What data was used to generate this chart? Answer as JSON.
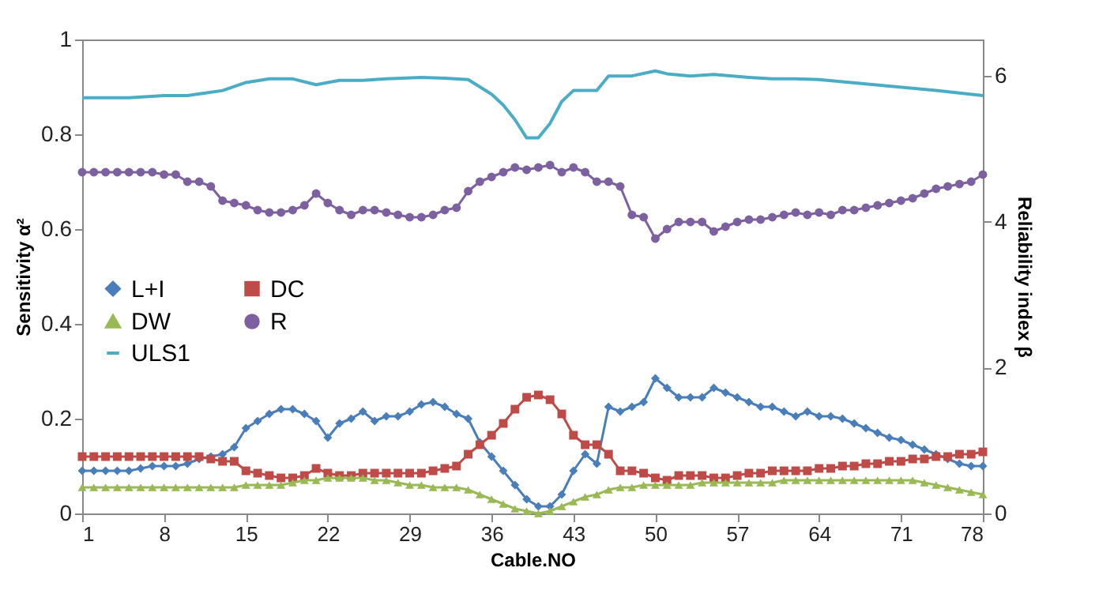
{
  "chart_data": {
    "type": "line",
    "xlabel": "Cable.NO",
    "ylabel": "Sensitivity α²",
    "y2label": "Reliability index β",
    "x": [
      1,
      2,
      3,
      4,
      5,
      6,
      7,
      8,
      9,
      10,
      11,
      12,
      13,
      14,
      15,
      16,
      17,
      18,
      19,
      20,
      21,
      22,
      23,
      24,
      25,
      26,
      27,
      28,
      29,
      30,
      31,
      32,
      33,
      34,
      35,
      36,
      37,
      38,
      39,
      40,
      41,
      42,
      43,
      44,
      45,
      46,
      47,
      48,
      49,
      50,
      51,
      52,
      53,
      54,
      55,
      56,
      57,
      58,
      59,
      60,
      61,
      62,
      63,
      64,
      65,
      66,
      67,
      68,
      69,
      70,
      71,
      72,
      73,
      74,
      75,
      76,
      77,
      78
    ],
    "xlim": [
      1,
      78
    ],
    "xticks": [
      1,
      8,
      15,
      22,
      29,
      36,
      43,
      50,
      57,
      64,
      71,
      78
    ],
    "ylim": [
      0,
      1
    ],
    "yticks": [
      {
        "value": 0,
        "label": "0"
      },
      0.2,
      0.4,
      0.6,
      0.8,
      {
        "value": 1,
        "label": "1"
      }
    ],
    "y2lim": [
      0,
      6.5
    ],
    "y2ticks": [
      0,
      2,
      4,
      6
    ],
    "legend": "left",
    "grid": false,
    "series": [
      {
        "name": "L+I",
        "color": "#4a7ebb",
        "marker": "diamond",
        "values": [
          0.09,
          0.09,
          0.09,
          0.09,
          0.09,
          0.095,
          0.1,
          0.1,
          0.1,
          0.105,
          0.115,
          0.12,
          0.125,
          0.14,
          0.18,
          0.195,
          0.21,
          0.22,
          0.22,
          0.21,
          0.195,
          0.16,
          0.19,
          0.2,
          0.215,
          0.195,
          0.205,
          0.205,
          0.215,
          0.23,
          0.235,
          0.225,
          0.21,
          0.2,
          0.15,
          0.12,
          0.09,
          0.06,
          0.03,
          0.015,
          0.015,
          0.04,
          0.09,
          0.125,
          0.105,
          0.225,
          0.215,
          0.225,
          0.235,
          0.285,
          0.265,
          0.245,
          0.245,
          0.245,
          0.265,
          0.255,
          0.245,
          0.235,
          0.225,
          0.225,
          0.215,
          0.205,
          0.215,
          0.205,
          0.205,
          0.2,
          0.19,
          0.18,
          0.17,
          0.16,
          0.155,
          0.145,
          0.135,
          0.125,
          0.115,
          0.105,
          0.1,
          0.1
        ]
      },
      {
        "name": "DC",
        "color": "#be4b48",
        "marker": "square",
        "values": [
          0.12,
          0.12,
          0.12,
          0.12,
          0.12,
          0.12,
          0.12,
          0.12,
          0.12,
          0.12,
          0.12,
          0.115,
          0.11,
          0.11,
          0.09,
          0.085,
          0.08,
          0.075,
          0.075,
          0.08,
          0.095,
          0.085,
          0.08,
          0.08,
          0.085,
          0.085,
          0.085,
          0.085,
          0.085,
          0.085,
          0.09,
          0.095,
          0.1,
          0.125,
          0.145,
          0.165,
          0.19,
          0.22,
          0.245,
          0.25,
          0.24,
          0.21,
          0.165,
          0.145,
          0.145,
          0.125,
          0.09,
          0.09,
          0.085,
          0.075,
          0.07,
          0.08,
          0.08,
          0.08,
          0.075,
          0.075,
          0.08,
          0.085,
          0.085,
          0.09,
          0.09,
          0.09,
          0.09,
          0.095,
          0.095,
          0.1,
          0.1,
          0.105,
          0.105,
          0.11,
          0.11,
          0.115,
          0.115,
          0.12,
          0.12,
          0.125,
          0.125,
          0.13
        ]
      },
      {
        "name": "DW",
        "color": "#98b954",
        "marker": "triangle",
        "values": [
          0.055,
          0.055,
          0.055,
          0.055,
          0.055,
          0.055,
          0.055,
          0.055,
          0.055,
          0.055,
          0.055,
          0.055,
          0.055,
          0.055,
          0.06,
          0.06,
          0.06,
          0.06,
          0.065,
          0.07,
          0.07,
          0.075,
          0.075,
          0.075,
          0.075,
          0.07,
          0.07,
          0.065,
          0.06,
          0.06,
          0.055,
          0.055,
          0.055,
          0.05,
          0.04,
          0.03,
          0.02,
          0.01,
          0.005,
          0,
          0.005,
          0.015,
          0.025,
          0.035,
          0.04,
          0.05,
          0.055,
          0.055,
          0.06,
          0.06,
          0.06,
          0.06,
          0.06,
          0.065,
          0.065,
          0.065,
          0.065,
          0.065,
          0.065,
          0.065,
          0.07,
          0.07,
          0.07,
          0.07,
          0.07,
          0.07,
          0.07,
          0.07,
          0.07,
          0.07,
          0.07,
          0.07,
          0.065,
          0.06,
          0.055,
          0.05,
          0.045,
          0.04
        ]
      },
      {
        "name": "R",
        "color": "#7d60a0",
        "marker": "circle",
        "values": [
          0.72,
          0.72,
          0.72,
          0.72,
          0.72,
          0.72,
          0.72,
          0.715,
          0.715,
          0.7,
          0.7,
          0.69,
          0.66,
          0.655,
          0.65,
          0.64,
          0.635,
          0.635,
          0.64,
          0.65,
          0.675,
          0.655,
          0.64,
          0.63,
          0.64,
          0.64,
          0.635,
          0.63,
          0.625,
          0.625,
          0.63,
          0.64,
          0.645,
          0.68,
          0.7,
          0.71,
          0.72,
          0.73,
          0.725,
          0.73,
          0.735,
          0.72,
          0.73,
          0.72,
          0.7,
          0.7,
          0.69,
          0.63,
          0.625,
          0.58,
          0.6,
          0.615,
          0.615,
          0.615,
          0.595,
          0.605,
          0.615,
          0.62,
          0.62,
          0.625,
          0.63,
          0.635,
          0.63,
          0.635,
          0.63,
          0.64,
          0.64,
          0.645,
          0.65,
          0.655,
          0.66,
          0.665,
          0.675,
          0.685,
          0.69,
          0.695,
          0.7,
          0.715
        ]
      },
      {
        "name": "ULS1",
        "color": "#4bacc6",
        "marker": "none",
        "axis": "y2",
        "x": [
          1,
          5,
          8,
          10,
          13,
          15,
          17,
          19,
          21,
          23,
          25,
          27,
          30,
          32,
          34,
          36,
          37,
          38,
          39,
          40,
          41,
          42,
          43,
          45,
          46,
          48,
          50,
          51,
          53,
          55,
          58,
          60,
          62,
          64,
          66,
          70,
          74,
          78
        ],
        "values": [
          5.7,
          5.7,
          5.73,
          5.73,
          5.8,
          5.91,
          5.96,
          5.96,
          5.88,
          5.94,
          5.94,
          5.96,
          5.98,
          5.97,
          5.95,
          5.75,
          5.6,
          5.4,
          5.15,
          5.15,
          5.35,
          5.65,
          5.8,
          5.8,
          6.0,
          6.0,
          6.07,
          6.03,
          6.0,
          6.02,
          5.98,
          5.96,
          5.96,
          5.95,
          5.92,
          5.86,
          5.8,
          5.73
        ]
      }
    ]
  }
}
